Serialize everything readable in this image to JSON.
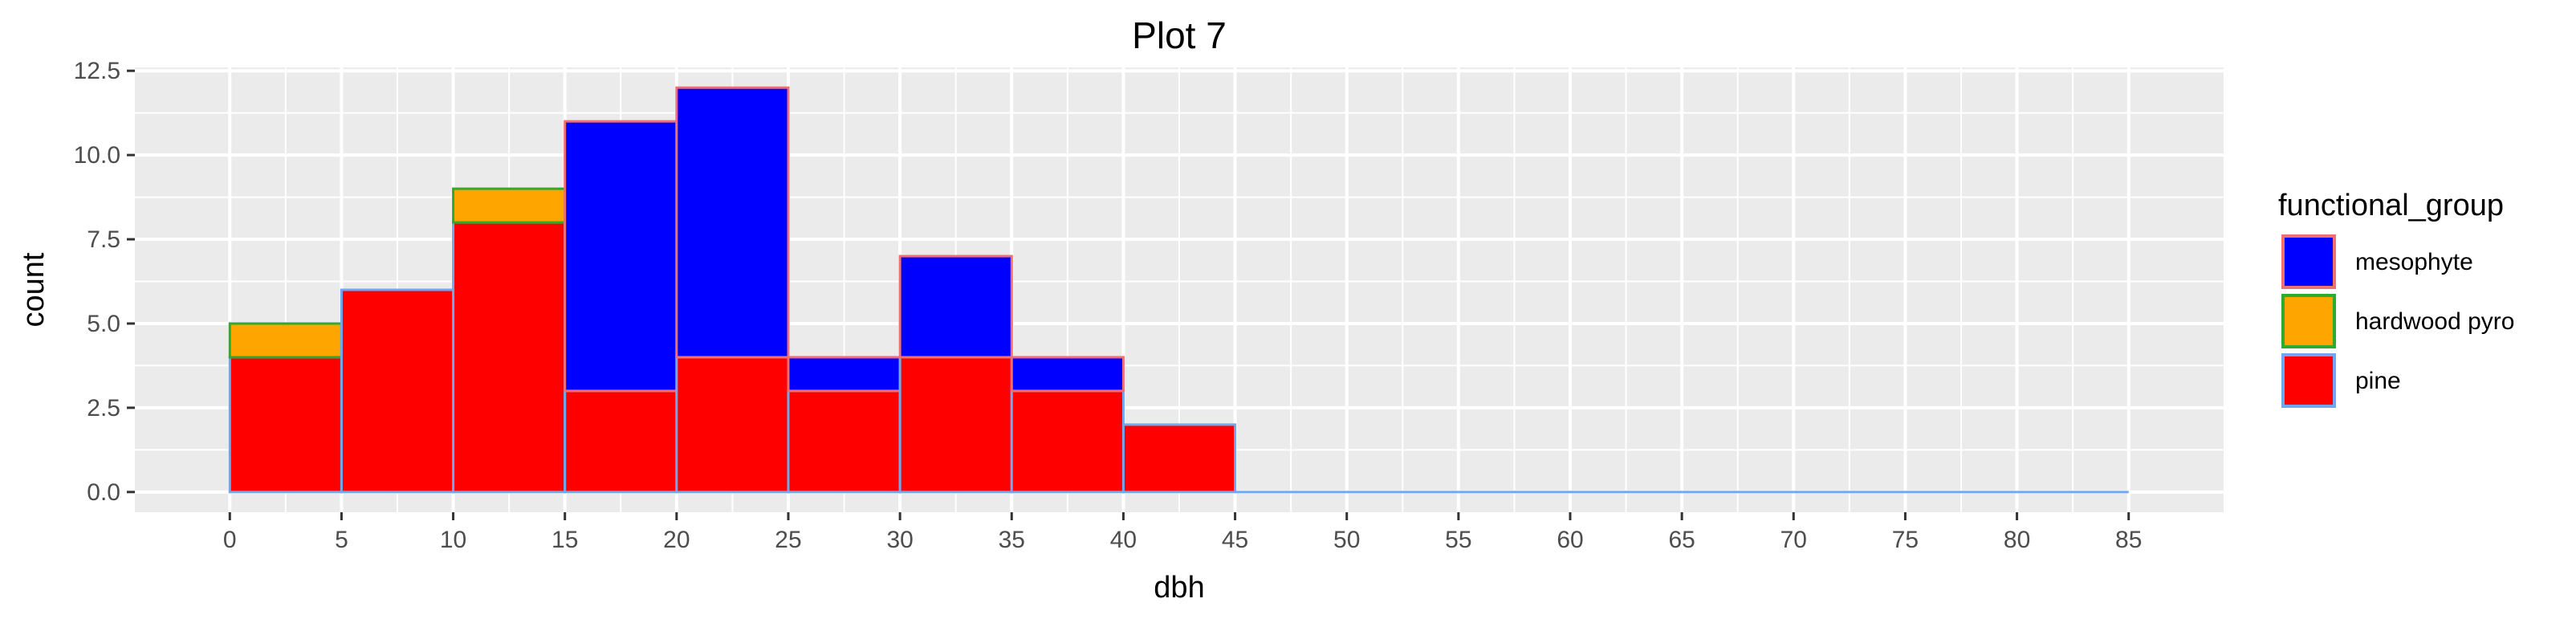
{
  "chart_data": {
    "type": "bar",
    "subtype": "stacked-histogram",
    "title": "Plot 7",
    "xlabel": "dbh",
    "ylabel": "count",
    "xlim": [
      -4.25,
      89.25
    ],
    "ylim": [
      -0.6,
      12.6
    ],
    "x_ticks": [
      0,
      5,
      10,
      15,
      20,
      25,
      30,
      35,
      40,
      45,
      50,
      55,
      60,
      65,
      70,
      75,
      80,
      85
    ],
    "y_ticks": [
      0.0,
      2.5,
      5.0,
      7.5,
      10.0,
      12.5
    ],
    "y_tick_labels": [
      "0.0",
      "2.5",
      "5.0",
      "7.5",
      "10.0",
      "12.5"
    ],
    "bin_edges": [
      0,
      5,
      10,
      15,
      20,
      25,
      30,
      35,
      40,
      45,
      50,
      55,
      60,
      65,
      70,
      75,
      80,
      85
    ],
    "bin_width": 5,
    "series": [
      {
        "name": "pine",
        "fill": "#ff0000",
        "outline": "#6fa8f0",
        "values": [
          4,
          6,
          8,
          3,
          4,
          3,
          4,
          3,
          2,
          0,
          0,
          0,
          0,
          0,
          0,
          0,
          0
        ]
      },
      {
        "name": "hardwood pyro",
        "fill": "#ffa500",
        "outline": "#2eaa2e",
        "values": [
          1,
          0,
          1,
          0,
          0,
          0,
          0,
          0,
          0,
          0,
          0,
          0,
          0,
          0,
          0,
          0,
          0
        ]
      },
      {
        "name": "mesophyte",
        "fill": "#0000ff",
        "outline": "#f07070",
        "values": [
          0,
          0,
          0,
          8,
          8,
          1,
          3,
          1,
          0,
          0,
          0,
          0,
          0,
          0,
          0,
          0,
          0
        ]
      }
    ],
    "stack_order": [
      "pine",
      "hardwood pyro",
      "mesophyte"
    ],
    "legend": {
      "title": "functional_group",
      "position": "right",
      "entries": [
        "mesophyte",
        "hardwood pyro",
        "pine"
      ]
    },
    "grid": true,
    "panel_background": "#ebebeb",
    "grid_color": "#ffffff"
  }
}
